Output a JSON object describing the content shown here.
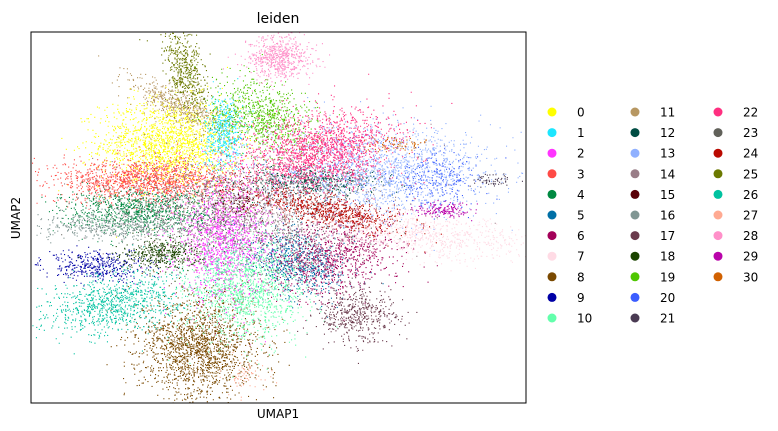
{
  "chart_data": {
    "type": "scatter",
    "title": "leiden",
    "xlabel": "UMAP1",
    "ylabel": "UMAP2",
    "grid": false,
    "ticks": false,
    "legend_position": "right",
    "xlim": [
      0,
      100
    ],
    "ylim": [
      0,
      100
    ],
    "clusters": [
      {
        "label": "0",
        "color": "#ffff00",
        "center": [
          28,
          70
        ],
        "spread": [
          7,
          6
        ],
        "n": 1800,
        "tilt": 0
      },
      {
        "label": "1",
        "color": "#1ce6ff",
        "center": [
          39,
          73
        ],
        "spread": [
          2,
          5
        ],
        "n": 500,
        "tilt": 0
      },
      {
        "label": "2",
        "color": "#ff34ff",
        "center": [
          39,
          44
        ],
        "spread": [
          5,
          8
        ],
        "n": 1500,
        "tilt": 0
      },
      {
        "label": "3",
        "color": "#ff4a46",
        "center": [
          23,
          60
        ],
        "spread": [
          9,
          3
        ],
        "n": 1400,
        "tilt": 0
      },
      {
        "label": "4",
        "color": "#008941",
        "center": [
          22,
          52
        ],
        "spread": [
          8,
          3
        ],
        "n": 900,
        "tilt": 0
      },
      {
        "label": "5",
        "color": "#006fa6",
        "center": [
          54,
          38
        ],
        "spread": [
          4,
          5
        ],
        "n": 700,
        "tilt": 0.6
      },
      {
        "label": "6",
        "color": "#a30059",
        "center": [
          61,
          40
        ],
        "spread": [
          7,
          5
        ],
        "n": 1000,
        "tilt": 0.5
      },
      {
        "label": "7",
        "color": "#ffdbe5",
        "center": [
          76,
          46
        ],
        "spread": [
          13,
          3
        ],
        "n": 1000,
        "tilt": -0.15
      },
      {
        "label": "8",
        "color": "#7a4900",
        "center": [
          34,
          15
        ],
        "spread": [
          6,
          7
        ],
        "n": 1800,
        "tilt": 0
      },
      {
        "label": "9",
        "color": "#0000a6",
        "center": [
          13,
          37
        ],
        "spread": [
          5,
          2
        ],
        "n": 400,
        "tilt": 0
      },
      {
        "label": "10",
        "color": "#63ffac",
        "center": [
          43,
          31
        ],
        "spread": [
          6,
          7
        ],
        "n": 1400,
        "tilt": 0
      },
      {
        "label": "11",
        "color": "#b79762",
        "center": [
          30,
          80
        ],
        "spread": [
          6,
          2
        ],
        "n": 500,
        "tilt": -0.6
      },
      {
        "label": "12",
        "color": "#004d43",
        "center": [
          57,
          60
        ],
        "spread": [
          7,
          2
        ],
        "n": 500,
        "tilt": 0
      },
      {
        "label": "13",
        "color": "#8fb0ff",
        "center": [
          70,
          63
        ],
        "spread": [
          11,
          6
        ],
        "n": 1700,
        "tilt": 0
      },
      {
        "label": "14",
        "color": "#997d87",
        "center": [
          43,
          53
        ],
        "spread": [
          12,
          7
        ],
        "n": 1600,
        "tilt": 0
      },
      {
        "label": "15",
        "color": "#5a0007",
        "center": [
          42,
          55
        ],
        "spread": [
          3,
          3
        ],
        "n": 100,
        "tilt": 0
      },
      {
        "label": "16",
        "color": "#809693",
        "center": [
          16,
          48
        ],
        "spread": [
          8,
          2
        ],
        "n": 500,
        "tilt": 0
      },
      {
        "label": "17",
        "color": "#6a3a4c",
        "center": [
          66,
          24
        ],
        "spread": [
          4,
          4
        ],
        "n": 500,
        "tilt": 0.7
      },
      {
        "label": "18",
        "color": "#1b4400",
        "center": [
          26,
          40
        ],
        "spread": [
          4,
          2
        ],
        "n": 400,
        "tilt": 0
      },
      {
        "label": "19",
        "color": "#4fc601",
        "center": [
          47,
          77
        ],
        "spread": [
          4,
          6
        ],
        "n": 800,
        "tilt": 0.9
      },
      {
        "label": "20",
        "color": "#3b5dff",
        "center": [
          82,
          60
        ],
        "spread": [
          4,
          4
        ],
        "n": 250,
        "tilt": -1.0
      },
      {
        "label": "21",
        "color": "#4a3b53",
        "center": [
          93,
          60
        ],
        "spread": [
          2,
          1
        ],
        "n": 60,
        "tilt": 0
      },
      {
        "label": "22",
        "color": "#ff2f80",
        "center": [
          58,
          68
        ],
        "spread": [
          8,
          5
        ],
        "n": 1800,
        "tilt": 0.3
      },
      {
        "label": "23",
        "color": "#61615a",
        "center": [
          44,
          49
        ],
        "spread": [
          12,
          7
        ],
        "n": 400,
        "tilt": 0
      },
      {
        "label": "24",
        "color": "#ba0900",
        "center": [
          60,
          52
        ],
        "spread": [
          8,
          2
        ],
        "n": 700,
        "tilt": -0.3
      },
      {
        "label": "25",
        "color": "#6b7900",
        "center": [
          31,
          90
        ],
        "spread": [
          2,
          6
        ],
        "n": 500,
        "tilt": 0.2
      },
      {
        "label": "26",
        "color": "#00c2a0",
        "center": [
          17,
          27
        ],
        "spread": [
          7,
          4
        ],
        "n": 900,
        "tilt": 0.3
      },
      {
        "label": "27",
        "color": "#ffaa92",
        "center": [
          44,
          8
        ],
        "spread": [
          2,
          3
        ],
        "n": 60,
        "tilt": 0
      },
      {
        "label": "28",
        "color": "#ff90c9",
        "center": [
          50,
          93
        ],
        "spread": [
          3,
          3
        ],
        "n": 600,
        "tilt": 0
      },
      {
        "label": "29",
        "color": "#b903aa",
        "center": [
          83,
          52
        ],
        "spread": [
          3,
          1
        ],
        "n": 150,
        "tilt": 0
      },
      {
        "label": "30",
        "color": "#d16100",
        "center": [
          73,
          70
        ],
        "spread": [
          4,
          1
        ],
        "n": 80,
        "tilt": 0
      }
    ]
  }
}
